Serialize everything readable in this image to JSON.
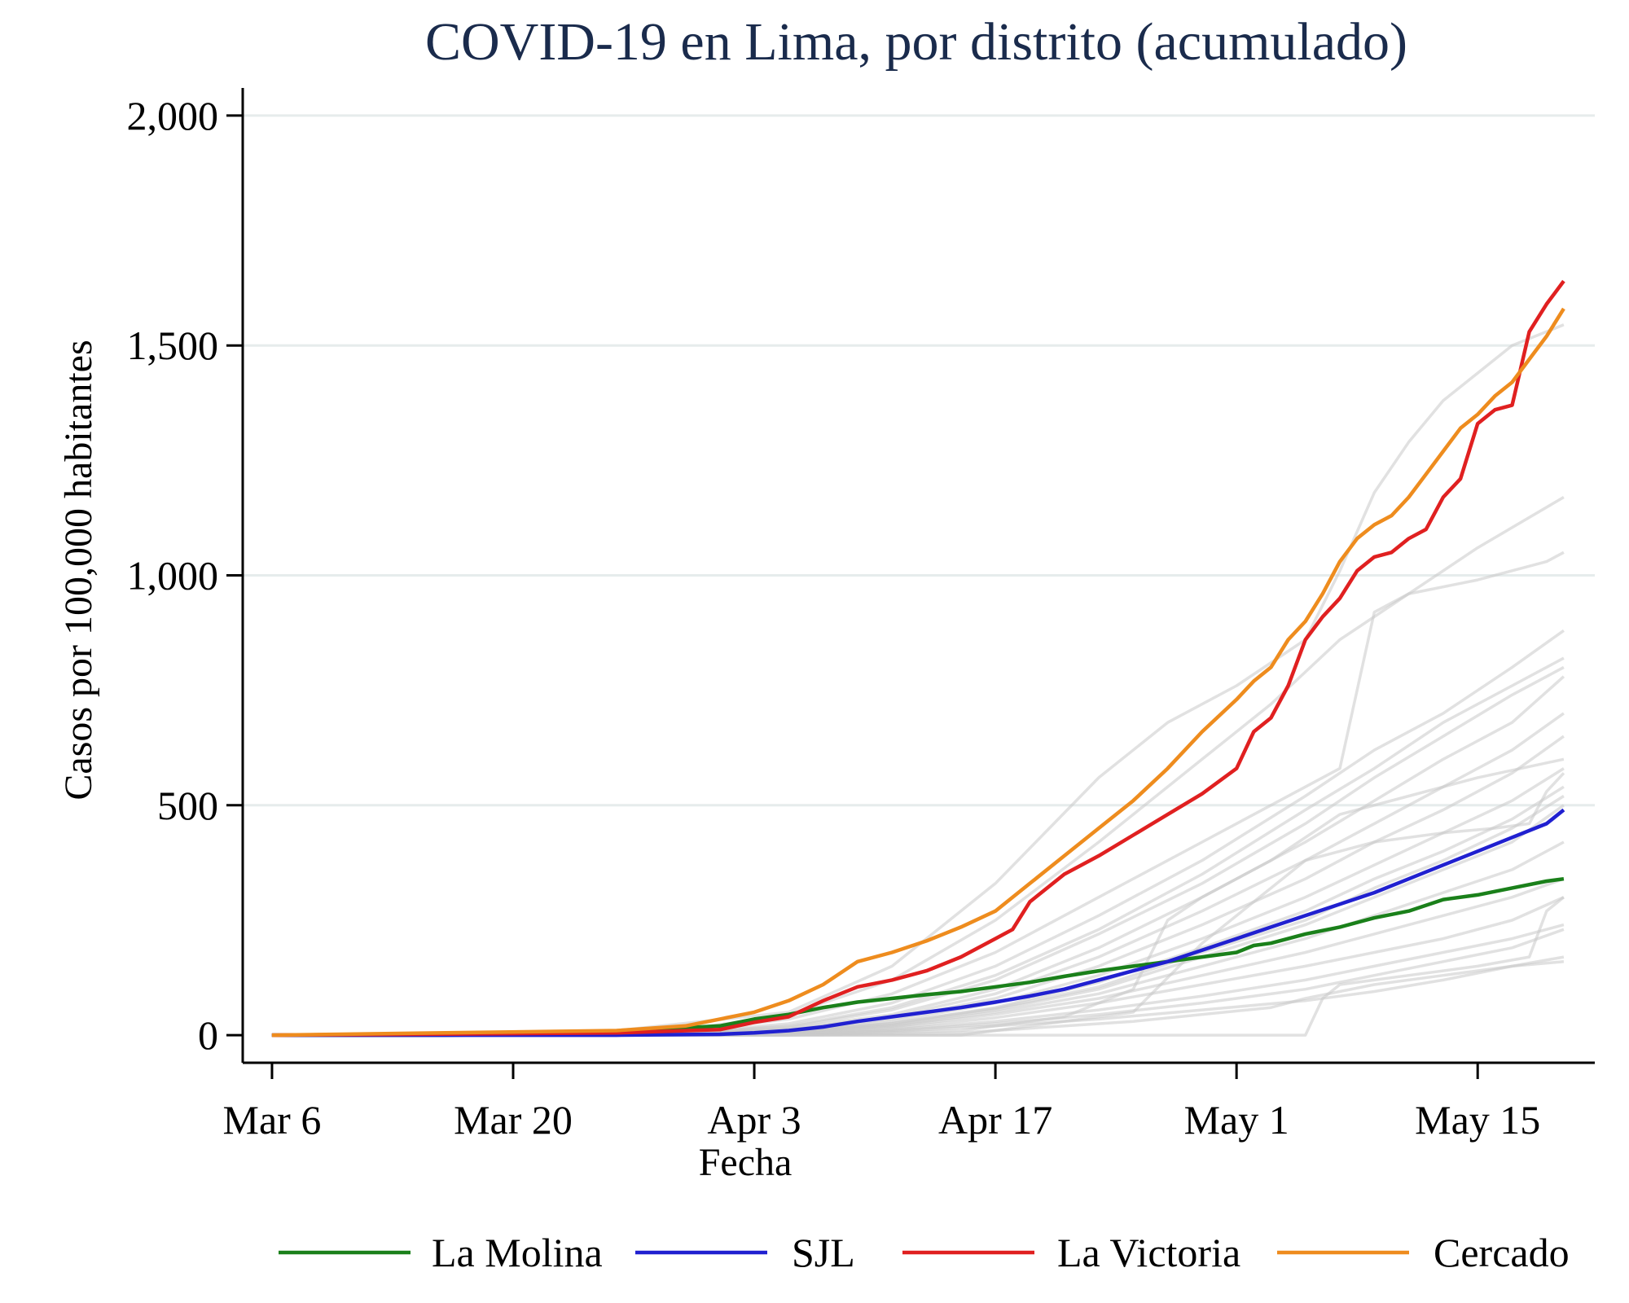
{
  "chart_data": {
    "type": "line",
    "title": "COVID-19 en Lima, por distrito (acumulado)",
    "xlabel": "Fecha",
    "ylabel": "Casos por 100,000 habitantes",
    "x_ticks": [
      {
        "day": 0,
        "label": "Mar 6"
      },
      {
        "day": 14,
        "label": "Mar 20"
      },
      {
        "day": 28,
        "label": "Apr 3"
      },
      {
        "day": 42,
        "label": "Apr 17"
      },
      {
        "day": 56,
        "label": "May 1"
      },
      {
        "day": 70,
        "label": "May 15"
      }
    ],
    "xlim": [
      -1.7,
      76.8
    ],
    "ylim": [
      -60,
      2060
    ],
    "y_ticks": [
      {
        "value": 0,
        "label": "0"
      },
      {
        "value": 500,
        "label": "500"
      },
      {
        "value": 1000,
        "label": "1,000"
      },
      {
        "value": 1500,
        "label": "1,500"
      },
      {
        "value": 2000,
        "label": "2,000"
      }
    ],
    "grid": "horizontal",
    "legend_position": "bottom",
    "highlight_series": [
      {
        "name": "La Molina",
        "color": "#1a801a",
        "x": [
          0,
          10,
          16,
          22,
          26,
          28,
          30,
          32,
          34,
          36,
          38,
          40,
          42,
          44,
          46,
          48,
          50,
          52,
          54,
          56,
          57,
          58,
          60,
          62,
          64,
          66,
          68,
          70,
          72,
          74,
          75
        ],
        "y": [
          0,
          0,
          3,
          12,
          20,
          35,
          45,
          60,
          72,
          80,
          88,
          95,
          105,
          115,
          128,
          140,
          150,
          160,
          170,
          180,
          195,
          200,
          220,
          235,
          255,
          270,
          295,
          305,
          320,
          335,
          340
        ]
      },
      {
        "name": "SJL",
        "color": "#2020d0",
        "x": [
          0,
          20,
          26,
          28,
          30,
          32,
          34,
          36,
          38,
          40,
          42,
          44,
          46,
          48,
          50,
          52,
          54,
          56,
          58,
          60,
          62,
          64,
          66,
          68,
          70,
          72,
          74,
          75
        ],
        "y": [
          0,
          0,
          2,
          5,
          10,
          18,
          30,
          40,
          50,
          60,
          72,
          85,
          100,
          120,
          140,
          160,
          185,
          210,
          235,
          260,
          285,
          310,
          340,
          370,
          400,
          430,
          460,
          490
        ]
      },
      {
        "name": "La Victoria",
        "color": "#e02020",
        "x": [
          0,
          20,
          26,
          28,
          30,
          32,
          34,
          36,
          38,
          40,
          42,
          43,
          44,
          46,
          48,
          50,
          52,
          54,
          56,
          57,
          58,
          59,
          60,
          61,
          62,
          63,
          64,
          65,
          66,
          67,
          68,
          69,
          70,
          71,
          72,
          73,
          74,
          75
        ],
        "y": [
          0,
          5,
          12,
          28,
          40,
          75,
          105,
          120,
          140,
          170,
          210,
          230,
          290,
          350,
          390,
          435,
          480,
          525,
          580,
          660,
          690,
          760,
          860,
          910,
          950,
          1010,
          1040,
          1050,
          1080,
          1100,
          1170,
          1210,
          1330,
          1360,
          1370,
          1530,
          1590,
          1640
        ]
      },
      {
        "name": "Cercado",
        "color": "#ee8c1e",
        "x": [
          0,
          20,
          24,
          26,
          28,
          30,
          32,
          34,
          36,
          38,
          40,
          42,
          44,
          46,
          48,
          50,
          52,
          54,
          56,
          57,
          58,
          59,
          60,
          61,
          62,
          63,
          64,
          65,
          66,
          67,
          68,
          69,
          70,
          71,
          72,
          73,
          74,
          75
        ],
        "y": [
          0,
          10,
          20,
          35,
          50,
          75,
          110,
          160,
          180,
          205,
          235,
          270,
          330,
          390,
          450,
          510,
          580,
          660,
          730,
          770,
          800,
          860,
          900,
          960,
          1030,
          1080,
          1110,
          1130,
          1170,
          1220,
          1270,
          1320,
          1350,
          1390,
          1420,
          1470,
          1520,
          1580
        ]
      }
    ],
    "background_series_color": "#c8c8c8",
    "background_series": [
      {
        "x": [
          0,
          20,
          30,
          36,
          42,
          48,
          52,
          56,
          60,
          62,
          64,
          66,
          68,
          70,
          72,
          74,
          75
        ],
        "y": [
          0,
          10,
          50,
          150,
          330,
          560,
          680,
          760,
          860,
          1010,
          1180,
          1290,
          1380,
          1440,
          1500,
          1530,
          1545
        ]
      },
      {
        "x": [
          0,
          24,
          30,
          36,
          42,
          48,
          54,
          58,
          62,
          66,
          70,
          75
        ],
        "y": [
          0,
          12,
          45,
          120,
          250,
          420,
          600,
          720,
          860,
          960,
          1060,
          1170
        ]
      },
      {
        "x": [
          0,
          24,
          30,
          36,
          42,
          48,
          54,
          58,
          62,
          64,
          66,
          70,
          74,
          75
        ],
        "y": [
          0,
          8,
          35,
          90,
          180,
          300,
          420,
          500,
          580,
          920,
          960,
          990,
          1030,
          1050
        ]
      },
      {
        "x": [
          0,
          24,
          30,
          36,
          42,
          48,
          54,
          60,
          64,
          68,
          72,
          75
        ],
        "y": [
          0,
          5,
          25,
          70,
          150,
          260,
          380,
          520,
          620,
          700,
          800,
          880
        ]
      },
      {
        "x": [
          0,
          24,
          30,
          36,
          42,
          48,
          54,
          60,
          64,
          68,
          72,
          75
        ],
        "y": [
          0,
          5,
          20,
          60,
          130,
          230,
          350,
          490,
          580,
          680,
          760,
          820
        ]
      },
      {
        "x": [
          0,
          24,
          30,
          36,
          42,
          48,
          54,
          60,
          64,
          68,
          72,
          75
        ],
        "y": [
          0,
          4,
          18,
          55,
          120,
          220,
          330,
          460,
          560,
          650,
          740,
          800
        ]
      },
      {
        "x": [
          0,
          24,
          30,
          36,
          42,
          48,
          54,
          60,
          64,
          68,
          72,
          75
        ],
        "y": [
          0,
          4,
          15,
          45,
          100,
          190,
          300,
          420,
          510,
          600,
          680,
          780
        ]
      },
      {
        "x": [
          0,
          24,
          30,
          36,
          42,
          48,
          54,
          60,
          64,
          68,
          72,
          75
        ],
        "y": [
          0,
          3,
          12,
          40,
          90,
          170,
          270,
          380,
          460,
          540,
          620,
          700
        ]
      },
      {
        "x": [
          0,
          24,
          30,
          36,
          42,
          48,
          54,
          60,
          64,
          68,
          72,
          75
        ],
        "y": [
          0,
          3,
          10,
          35,
          80,
          150,
          240,
          340,
          420,
          490,
          570,
          650
        ]
      },
      {
        "x": [
          0,
          24,
          30,
          36,
          42,
          48,
          54,
          60,
          64,
          68,
          72,
          75
        ],
        "y": [
          0,
          2,
          8,
          30,
          70,
          130,
          210,
          300,
          370,
          440,
          510,
          580
        ]
      },
      {
        "x": [
          0,
          24,
          30,
          36,
          42,
          48,
          54,
          60,
          64,
          68,
          72,
          75
        ],
        "y": [
          0,
          2,
          8,
          25,
          60,
          115,
          190,
          270,
          340,
          400,
          470,
          540
        ]
      },
      {
        "x": [
          0,
          24,
          30,
          36,
          42,
          48,
          54,
          60,
          64,
          68,
          72,
          75
        ],
        "y": [
          0,
          2,
          6,
          22,
          55,
          100,
          170,
          240,
          300,
          360,
          420,
          500
        ]
      },
      {
        "x": [
          0,
          24,
          30,
          36,
          42,
          48,
          54,
          60,
          64,
          68,
          72,
          75
        ],
        "y": [
          0,
          2,
          6,
          20,
          50,
          90,
          150,
          210,
          260,
          310,
          360,
          420
        ]
      },
      {
        "x": [
          0,
          24,
          30,
          36,
          42,
          48,
          54,
          60,
          64,
          68,
          72,
          75
        ],
        "y": [
          0,
          1,
          5,
          18,
          45,
          80,
          130,
          180,
          220,
          260,
          300,
          340
        ]
      },
      {
        "x": [
          0,
          24,
          30,
          36,
          42,
          48,
          54,
          60,
          64,
          68,
          72,
          75
        ],
        "y": [
          0,
          1,
          4,
          15,
          38,
          70,
          110,
          150,
          180,
          210,
          250,
          300
        ]
      },
      {
        "x": [
          0,
          24,
          30,
          36,
          42,
          48,
          54,
          60,
          64,
          68,
          72,
          75
        ],
        "y": [
          0,
          1,
          3,
          12,
          30,
          55,
          85,
          120,
          150,
          180,
          210,
          240
        ]
      },
      {
        "x": [
          0,
          24,
          30,
          36,
          42,
          48,
          54,
          60,
          64,
          68,
          72,
          75
        ],
        "y": [
          0,
          1,
          3,
          10,
          25,
          45,
          70,
          100,
          130,
          160,
          190,
          230
        ]
      },
      {
        "x": [
          0,
          24,
          30,
          36,
          42,
          48,
          54,
          60,
          64,
          68,
          72,
          75
        ],
        "y": [
          0,
          0,
          2,
          8,
          20,
          35,
          55,
          75,
          95,
          120,
          150,
          160
        ]
      },
      {
        "x": [
          0,
          40,
          50,
          54,
          60,
          64,
          68,
          71,
          73,
          74,
          75
        ],
        "y": [
          0,
          0,
          50,
          200,
          380,
          420,
          440,
          450,
          460,
          530,
          570
        ]
      },
      {
        "x": [
          0,
          30,
          40,
          46,
          50,
          52,
          54,
          58,
          62,
          66,
          70,
          75
        ],
        "y": [
          0,
          0,
          10,
          40,
          100,
          250,
          300,
          380,
          480,
          520,
          560,
          600
        ]
      },
      {
        "x": [
          0,
          30,
          40,
          50,
          58,
          60,
          64,
          68,
          72,
          75
        ],
        "y": [
          0,
          0,
          5,
          30,
          60,
          80,
          110,
          130,
          150,
          170
        ]
      },
      {
        "x": [
          0,
          60,
          61,
          62,
          66,
          70,
          73,
          74,
          75
        ],
        "y": [
          0,
          0,
          80,
          110,
          130,
          150,
          170,
          270,
          300
        ]
      },
      {
        "x": [
          0,
          24,
          30,
          36,
          42,
          48,
          54,
          60,
          64,
          68,
          72,
          75
        ],
        "y": [
          0,
          2,
          7,
          26,
          58,
          105,
          180,
          250,
          320,
          380,
          450,
          520
        ]
      }
    ]
  }
}
